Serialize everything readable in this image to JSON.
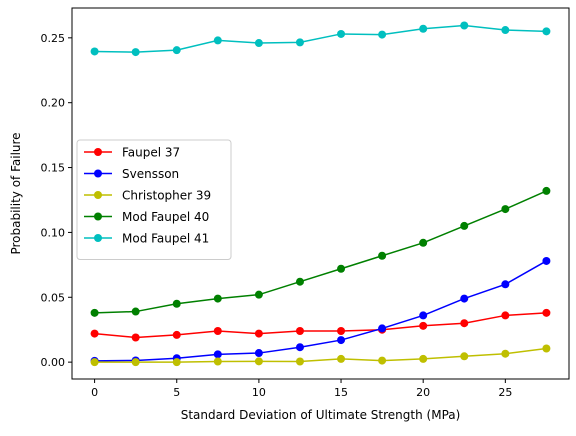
{
  "chart_data": {
    "type": "line",
    "title": "",
    "xlabel": "Standard Deviation of Ultimate Strength (MPa)",
    "ylabel": "Probability of Failure",
    "xlim": [
      -1.375,
      28.875
    ],
    "ylim": [
      -0.013,
      0.273
    ],
    "xticks": [
      0,
      5,
      10,
      15,
      20,
      25
    ],
    "xtick_labels": [
      "0",
      "5",
      "10",
      "15",
      "20",
      "25"
    ],
    "yticks": [
      0.0,
      0.05,
      0.1,
      0.15,
      0.2,
      0.25
    ],
    "ytick_labels": [
      "0.00",
      "0.05",
      "0.10",
      "0.15",
      "0.20",
      "0.25"
    ],
    "grid": false,
    "legend_position": "center-left",
    "x": [
      0,
      2.5,
      5,
      7.5,
      10,
      12.5,
      15,
      17.5,
      20,
      22.5,
      25,
      27.5
    ],
    "series": [
      {
        "name": "Faupel 37",
        "color": "#ff0000",
        "marker": "circle",
        "values": [
          0.022,
          0.019,
          0.021,
          0.024,
          0.022,
          0.024,
          0.024,
          0.025,
          0.028,
          0.03,
          0.036,
          0.038
        ]
      },
      {
        "name": "Svensson",
        "color": "#0000ff",
        "marker": "circle",
        "values": [
          0.001,
          0.0013,
          0.003,
          0.006,
          0.007,
          0.0115,
          0.017,
          0.026,
          0.036,
          0.049,
          0.06,
          0.078
        ]
      },
      {
        "name": "Christopher 39",
        "color": "#bfbf00",
        "marker": "circle",
        "values": [
          0.0,
          0.0,
          0.0,
          0.0005,
          0.0006,
          0.0005,
          0.0025,
          0.0012,
          0.0025,
          0.0045,
          0.0065,
          0.0105
        ]
      },
      {
        "name": "Mod Faupel 40",
        "color": "#008000",
        "marker": "circle",
        "values": [
          0.038,
          0.039,
          0.045,
          0.049,
          0.052,
          0.062,
          0.072,
          0.082,
          0.092,
          0.105,
          0.118,
          0.132
        ]
      },
      {
        "name": "Mod Faupel 41",
        "color": "#00bfbf",
        "marker": "circle",
        "values": [
          0.2395,
          0.239,
          0.2405,
          0.248,
          0.246,
          0.2465,
          0.253,
          0.2525,
          0.257,
          0.2595,
          0.256,
          0.255
        ]
      }
    ]
  }
}
